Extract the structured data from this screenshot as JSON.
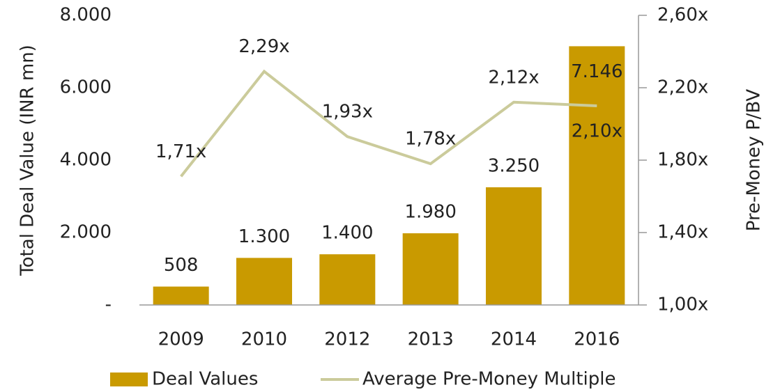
{
  "chart_data": {
    "type": "bar-line",
    "categories": [
      "2009",
      "2010",
      "2012",
      "2013",
      "2014",
      "2016"
    ],
    "series": [
      {
        "name": "Deal Values",
        "color": "#c99a00",
        "type": "bar",
        "values": [
          508,
          1300,
          1400,
          1980,
          3250,
          7146
        ],
        "value_labels": [
          "508",
          "1.300",
          "1.400",
          "1.980",
          "3.250",
          "7.146"
        ]
      },
      {
        "name": "Average Pre-Money Multiple",
        "color": "#cbcb9b",
        "type": "line",
        "axis": "y2",
        "values": [
          1.71,
          2.29,
          1.93,
          1.78,
          2.12,
          2.1
        ],
        "value_labels": [
          "1,71x",
          "2,29x",
          "1,93x",
          "1,78x",
          "2,12x",
          "2,10x"
        ]
      }
    ],
    "y_label": "Total Deal Value (INR mn)",
    "y2_label": "Pre-Money P/BV",
    "ylim": [
      0,
      8000
    ],
    "yticks": [
      {
        "value": 0,
        "label": "-"
      },
      {
        "value": 2000,
        "label": "2.000"
      },
      {
        "value": 4000,
        "label": "4.000"
      },
      {
        "value": 6000,
        "label": "6.000"
      },
      {
        "value": 8000,
        "label": "8.000"
      }
    ],
    "y2lim": [
      1.0,
      2.6
    ],
    "y2ticks": [
      {
        "value": 1.0,
        "label": "1,00x"
      },
      {
        "value": 1.4,
        "label": "1,40x"
      },
      {
        "value": 1.8,
        "label": "1,80x"
      },
      {
        "value": 2.2,
        "label": "2,20x"
      },
      {
        "value": 2.6,
        "label": "2,60x"
      }
    ],
    "legend": "bottom"
  }
}
